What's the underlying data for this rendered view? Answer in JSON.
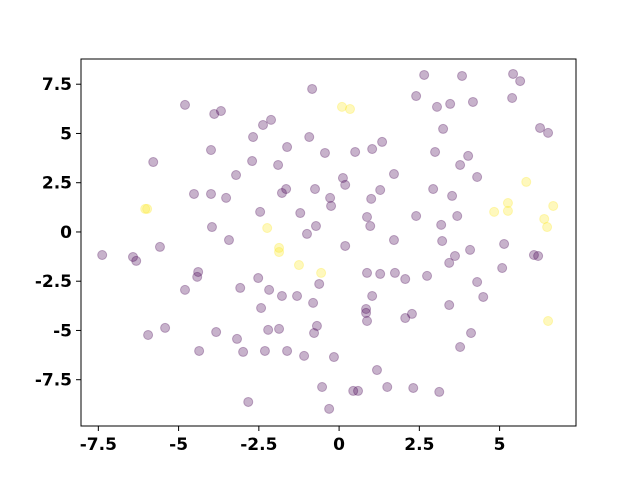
{
  "chart_data": {
    "type": "scatter",
    "xlim": [
      -8.04,
      7.38
    ],
    "ylim": [
      -9.85,
      8.78
    ],
    "xticks": [
      -7.5,
      -5.0,
      -2.5,
      0.0,
      2.5,
      5.0
    ],
    "yticks": [
      -7.5,
      -5.0,
      -2.5,
      0.0,
      2.5,
      5.0,
      7.5
    ],
    "series": [
      {
        "color": "#440154",
        "opacity": 0.3,
        "x": [
          -7.38,
          -4.8,
          -3.89,
          -3.68,
          -0.84,
          -2.83,
          -0.31,
          0.44,
          0.59,
          -0.53,
          1.5,
          2.31,
          3.12,
          1.18,
          -1.09,
          -0.16,
          -1.62,
          -2.99,
          -2.31,
          -4.36,
          -5.95,
          -5.42,
          -3.83,
          -3.18,
          -2.21,
          -1.87,
          -0.69,
          -0.78,
          0.87,
          2.06,
          2.27,
          0.84,
          1.03,
          0.84,
          3.43,
          4.11,
          3.77,
          4.49,
          -0.81,
          -0.62,
          -1.31,
          -1.78,
          -2.43,
          -2.18,
          -3.08,
          -4.8,
          -4.42,
          -4.39,
          -2.52,
          0.87,
          1.74,
          1.28,
          2.06,
          2.74,
          3.43,
          4.3,
          5.08,
          6.07,
          6.2,
          -5.58,
          -6.42,
          -6.32,
          -3.43,
          -3.96,
          -2.46,
          -1.21,
          -1.0,
          -0.72,
          -0.25,
          -0.28,
          -0.75,
          0.19,
          0.87,
          0.97,
          1.71,
          2.4,
          3.21,
          3.18,
          3.68,
          4.08,
          3.61,
          5.14,
          -4.52,
          -3.99,
          -3.52,
          -1.78,
          -1.65,
          0.12,
          0.19,
          1.28,
          1.71,
          1.0,
          2.93,
          3.52,
          3.77,
          4.02,
          4.3,
          -1.62,
          -1.9,
          -3.21,
          -2.71,
          -3.99,
          -5.79,
          -0.44,
          0.5,
          1.03,
          1.34,
          2.99,
          -2.68,
          -2.37,
          -2.12,
          -0.93,
          2.4,
          3.05,
          3.46,
          4.17,
          3.24,
          5.39,
          6.26,
          6.51,
          2.65,
          3.83,
          5.42,
          5.64
        ],
        "values": [
          -1.17,
          6.45,
          5.99,
          6.14,
          7.26,
          -8.63,
          -8.98,
          -8.07,
          -8.07,
          -7.87,
          -7.87,
          -7.92,
          -8.12,
          -7.01,
          -6.29,
          -6.35,
          -6.04,
          -6.09,
          -6.04,
          -6.04,
          -5.23,
          -4.87,
          -5.08,
          -5.43,
          -4.97,
          -4.92,
          -4.77,
          -5.13,
          -4.52,
          -4.37,
          -4.16,
          -4.11,
          -3.25,
          -3.91,
          -3.71,
          -5.13,
          -5.84,
          -3.3,
          -3.6,
          -2.64,
          -3.25,
          -3.25,
          -3.86,
          -2.94,
          -2.84,
          -2.94,
          -2.28,
          -2.03,
          -2.34,
          -2.08,
          -2.08,
          -2.13,
          -2.39,
          -2.23,
          -1.57,
          -2.54,
          -1.83,
          -1.17,
          -1.22,
          -0.76,
          -1.27,
          -1.47,
          -0.41,
          0.25,
          1.02,
          0.96,
          -0.1,
          0.3,
          1.32,
          1.73,
          2.18,
          -0.71,
          0.76,
          0.3,
          -0.41,
          0.81,
          -0.46,
          0.36,
          0.81,
          -0.91,
          -1.22,
          -0.61,
          1.93,
          1.93,
          1.73,
          1.98,
          2.18,
          2.74,
          2.39,
          2.13,
          2.94,
          1.68,
          2.18,
          1.83,
          3.4,
          3.86,
          2.79,
          4.31,
          3.4,
          2.89,
          3.6,
          4.16,
          3.55,
          4.01,
          4.06,
          4.21,
          4.57,
          4.06,
          4.82,
          5.43,
          5.69,
          4.82,
          6.9,
          6.35,
          6.5,
          6.6,
          5.23,
          6.8,
          5.28,
          5.03,
          7.97,
          7.92,
          8.02,
          7.66
        ]
      },
      {
        "color": "#fde725",
        "opacity": 0.3,
        "x": [
          -6.04,
          -5.98,
          -2.24,
          -1.87,
          -1.87,
          -1.25,
          -0.56,
          0.09,
          0.34,
          5.83,
          4.83,
          5.26,
          5.26,
          6.39,
          6.48,
          6.67,
          6.51
        ],
        "values": [
          1.17,
          1.17,
          0.2,
          -0.81,
          -1.02,
          -1.68,
          -2.08,
          6.35,
          6.24,
          2.54,
          1.02,
          1.47,
          1.07,
          0.66,
          0.25,
          1.32,
          -4.52
        ]
      }
    ]
  }
}
